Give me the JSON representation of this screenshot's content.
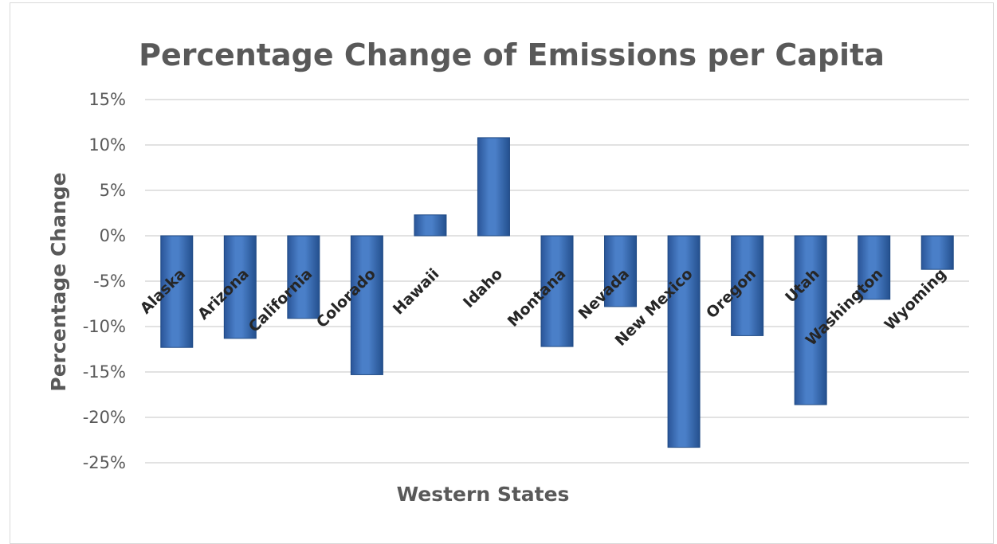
{
  "chart_data": {
    "type": "bar",
    "title": "Percentage Change of Emissions per Capita",
    "xlabel": "Western States",
    "ylabel": "Percentage Change",
    "categories": [
      "Alaska",
      "Arizona",
      "California",
      "Colorado",
      "Hawaii",
      "Idaho",
      "Montana",
      "Nevada",
      "New Mexico",
      "Oregon",
      "Utah",
      "Washington",
      "Wyoming"
    ],
    "values": [
      -12.3,
      -11.3,
      -9.1,
      -15.3,
      2.3,
      10.8,
      -12.2,
      -7.8,
      -23.3,
      -11.0,
      -18.6,
      -7.0,
      -3.7
    ],
    "ylim": [
      -25,
      15
    ],
    "yticks": [
      15,
      10,
      5,
      0,
      -5,
      -10,
      -15,
      -20,
      -25
    ],
    "ytick_labels": [
      "15%",
      "10%",
      "5%",
      "0%",
      "-5%",
      "-10%",
      "-15%",
      "-20%",
      "-25%"
    ],
    "grid": true,
    "bar_color": "#3a6db3"
  }
}
